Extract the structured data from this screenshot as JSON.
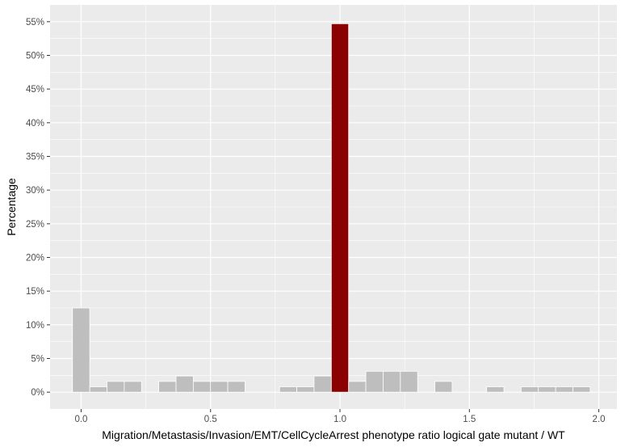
{
  "chart_data": {
    "type": "bar",
    "title": "",
    "xlabel": "Migration/Metastasis/Invasion/EMT/CellCycleArrest phenotype ratio logical gate mutant / WT",
    "ylabel": "Percentage",
    "bin_width": 0.0667,
    "xlim": [
      -0.12,
      2.07
    ],
    "ylim": [
      -2.5,
      57.5
    ],
    "x_ticks": [
      0.0,
      0.5,
      1.0,
      1.5,
      2.0
    ],
    "x_tick_labels": [
      "0.0",
      "0.5",
      "1.0",
      "1.5",
      "2.0"
    ],
    "y_ticks": [
      0,
      5,
      10,
      15,
      20,
      25,
      30,
      35,
      40,
      45,
      50,
      55
    ],
    "y_tick_labels": [
      "0%",
      "5%",
      "10%",
      "15%",
      "20%",
      "25%",
      "30%",
      "35%",
      "40%",
      "45%",
      "50%",
      "55%"
    ],
    "grid": true,
    "bar_color": "#bebebe",
    "highlight_color": "#8b0000",
    "panel_background": "#ebebeb",
    "bins": [
      {
        "x": 0.0,
        "value": 12.5
      },
      {
        "x": 0.0667,
        "value": 0.8
      },
      {
        "x": 0.1333,
        "value": 1.6
      },
      {
        "x": 0.2,
        "value": 1.6
      },
      {
        "x": 0.3333,
        "value": 1.6
      },
      {
        "x": 0.4,
        "value": 2.4
      },
      {
        "x": 0.4667,
        "value": 1.6
      },
      {
        "x": 0.5333,
        "value": 1.6
      },
      {
        "x": 0.6,
        "value": 1.6
      },
      {
        "x": 0.8,
        "value": 0.8
      },
      {
        "x": 0.8667,
        "value": 0.8
      },
      {
        "x": 0.9333,
        "value": 2.4
      },
      {
        "x": 1.0,
        "value": 54.7,
        "highlight": true
      },
      {
        "x": 1.0667,
        "value": 1.6
      },
      {
        "x": 1.1333,
        "value": 3.1
      },
      {
        "x": 1.2,
        "value": 3.1
      },
      {
        "x": 1.2667,
        "value": 3.1
      },
      {
        "x": 1.4,
        "value": 1.6
      },
      {
        "x": 1.6,
        "value": 0.8
      },
      {
        "x": 1.7333,
        "value": 0.8
      },
      {
        "x": 1.8,
        "value": 0.8
      },
      {
        "x": 1.8667,
        "value": 0.8
      },
      {
        "x": 1.9333,
        "value": 0.8
      }
    ]
  }
}
